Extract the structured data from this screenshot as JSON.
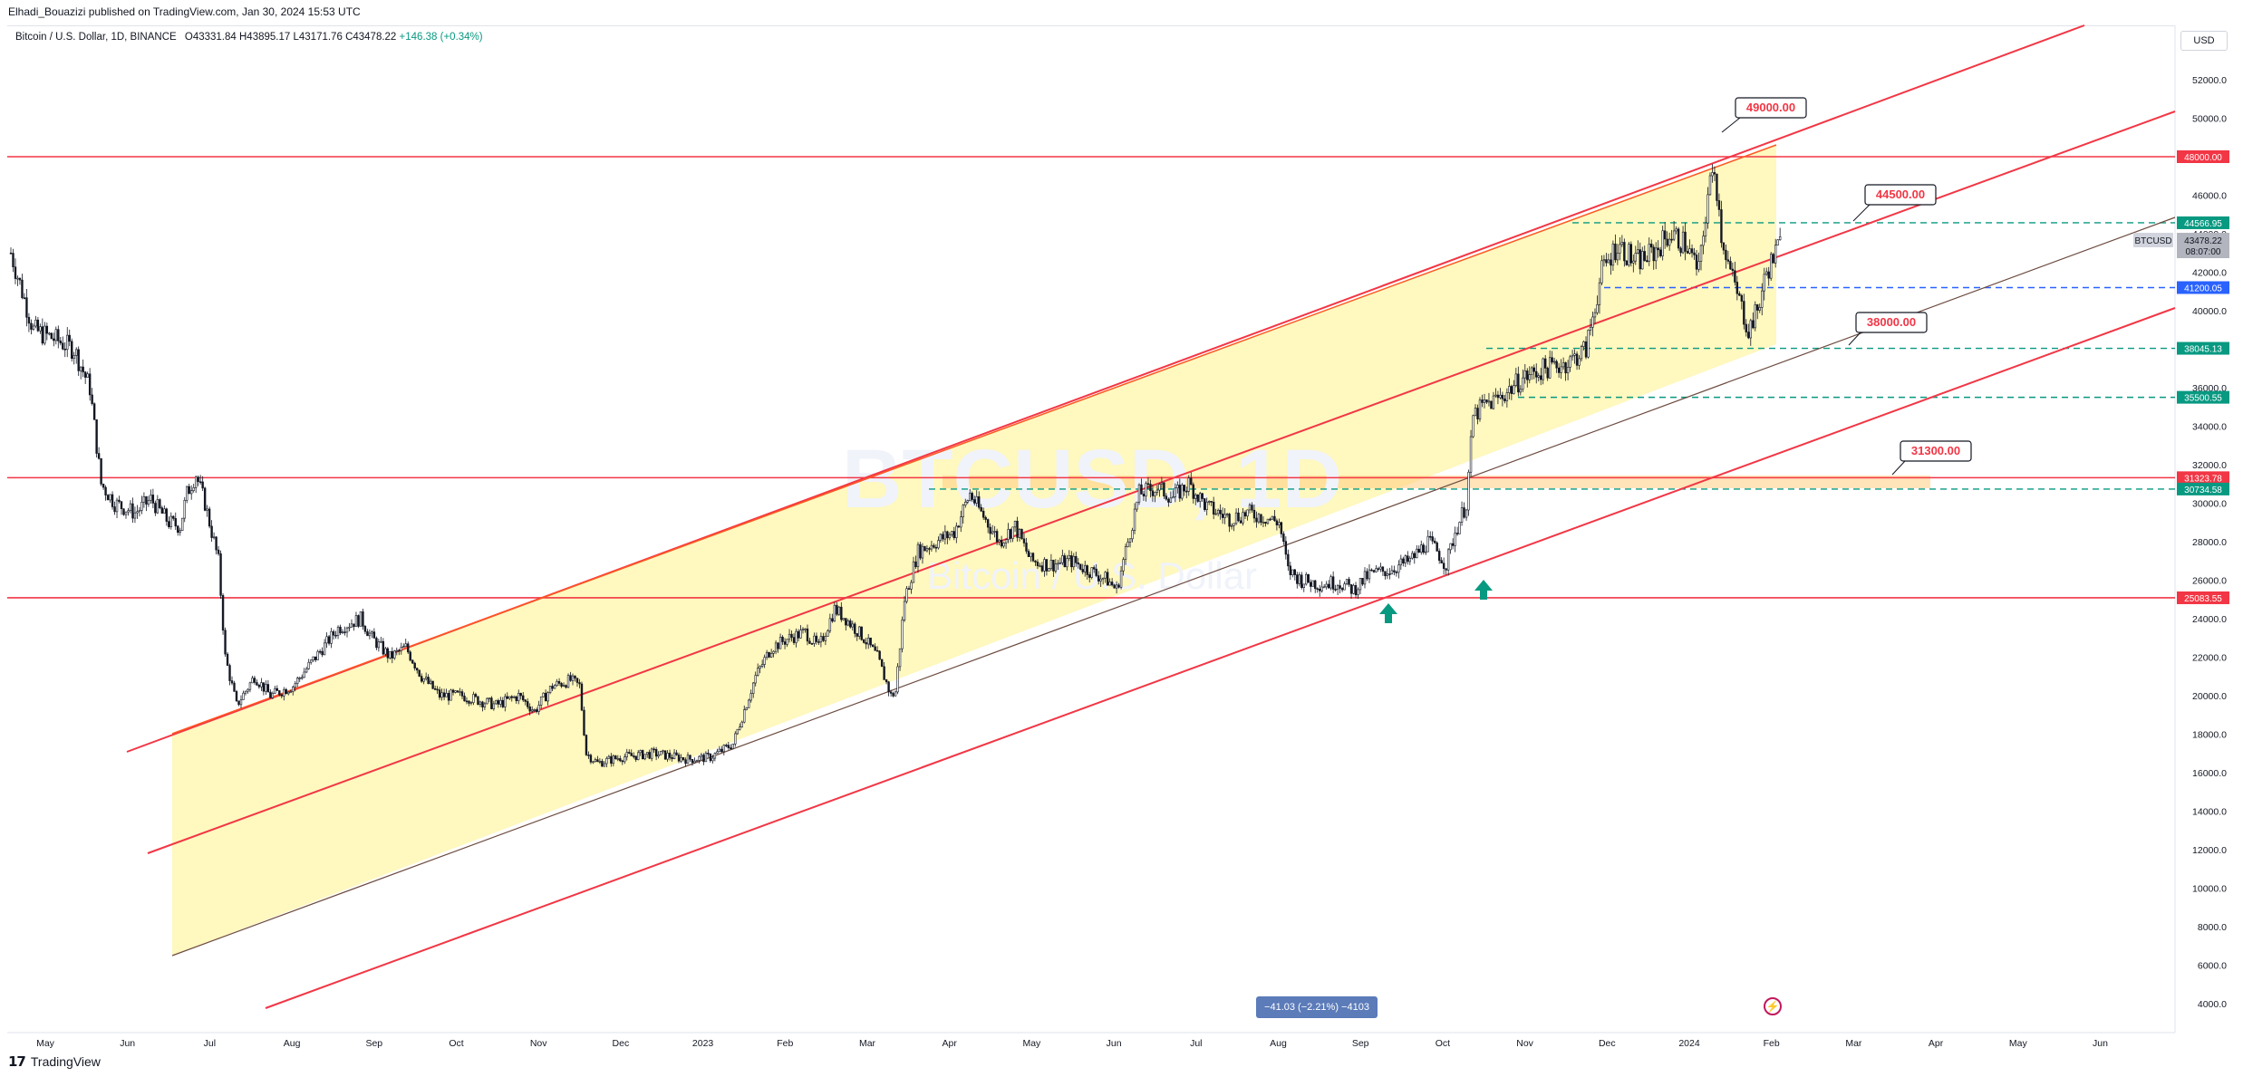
{
  "header": {
    "publisher": "Elhadi_Bouazizi published on TradingView.com, Jan 30, 2024 15:53 UTC"
  },
  "legend": {
    "title": "Bitcoin / U.S. Dollar, 1D, BINANCE",
    "open": "O43331.84",
    "high": "H43895.17",
    "low": "L43171.76",
    "close": "C43478.22",
    "change": "+146.38 (+0.34%)"
  },
  "currency_label": "USD",
  "watermark": {
    "symbol": "BTCUSD, 1D",
    "name": "Bitcoin / U.S. Dollar"
  },
  "measure_label": "−41.03 (−2.21%) −4103",
  "footer": {
    "logo": "𝟭𝟳",
    "brand": "TradingView"
  },
  "colors": {
    "candle_up": "#131722",
    "candle_down": "#131722",
    "channel_fill": "#fff59d",
    "red_line": "#f23645",
    "orange_line": "#ff5722",
    "teal": "#089981",
    "blue": "#2962ff",
    "zone_fill": "#ffcc80"
  },
  "chart_data": {
    "type": "candlestick",
    "symbol": "BTCUSD",
    "interval": "1D",
    "exchange": "BINANCE",
    "ylim": [
      3000,
      54000
    ],
    "y_ticks": [
      4000,
      6000,
      8000,
      10000,
      12000,
      14000,
      16000,
      18000,
      20000,
      22000,
      24000,
      26000,
      28000,
      30000,
      32000,
      34000,
      36000,
      38000,
      40000,
      42000,
      44000,
      46000,
      48000,
      50000,
      52000
    ],
    "x_ticks": [
      "May",
      "Jun",
      "Jul",
      "Aug",
      "Sep",
      "Oct",
      "Nov",
      "Dec",
      "2023",
      "Feb",
      "Mar",
      "Apr",
      "May",
      "Jun",
      "Jul",
      "Aug",
      "Sep",
      "Oct",
      "Nov",
      "Dec",
      "2024",
      "Feb",
      "Mar",
      "Apr",
      "May",
      "Jun"
    ],
    "price_path": [
      [
        0,
        43000
      ],
      [
        5,
        41000
      ],
      [
        10,
        39000
      ],
      [
        20,
        38500
      ],
      [
        28,
        38000
      ],
      [
        35,
        36000
      ],
      [
        40,
        31000
      ],
      [
        46,
        30000
      ],
      [
        55,
        29500
      ],
      [
        62,
        30200
      ],
      [
        70,
        29000
      ],
      [
        75,
        28800
      ],
      [
        78,
        30500
      ],
      [
        82,
        31500
      ],
      [
        86,
        30000
      ],
      [
        92,
        27000
      ],
      [
        95,
        22000
      ],
      [
        100,
        19500
      ],
      [
        108,
        21000
      ],
      [
        115,
        20000
      ],
      [
        125,
        20500
      ],
      [
        135,
        22000
      ],
      [
        145,
        23500
      ],
      [
        155,
        24000
      ],
      [
        160,
        23000
      ],
      [
        168,
        22000
      ],
      [
        175,
        22500
      ],
      [
        182,
        21000
      ],
      [
        190,
        20000
      ],
      [
        200,
        20000
      ],
      [
        215,
        19500
      ],
      [
        225,
        20000
      ],
      [
        232,
        19200
      ],
      [
        240,
        20500
      ],
      [
        248,
        20800
      ],
      [
        252,
        20500
      ],
      [
        255,
        17000
      ],
      [
        260,
        16500
      ],
      [
        270,
        16800
      ],
      [
        285,
        17000
      ],
      [
        300,
        16700
      ],
      [
        310,
        16800
      ],
      [
        320,
        17500
      ],
      [
        330,
        21000
      ],
      [
        337,
        22500
      ],
      [
        345,
        23000
      ],
      [
        352,
        23300
      ],
      [
        358,
        22500
      ],
      [
        365,
        24500
      ],
      [
        370,
        24000
      ],
      [
        378,
        23000
      ],
      [
        384,
        22000
      ],
      [
        390,
        20000
      ],
      [
        392,
        20200
      ],
      [
        396,
        25000
      ],
      [
        402,
        27500
      ],
      [
        410,
        28000
      ],
      [
        418,
        28500
      ],
      [
        425,
        30500
      ],
      [
        430,
        29500
      ],
      [
        438,
        28000
      ],
      [
        445,
        28800
      ],
      [
        452,
        27000
      ],
      [
        460,
        26800
      ],
      [
        470,
        27000
      ],
      [
        478,
        26500
      ],
      [
        486,
        26000
      ],
      [
        490,
        25500
      ],
      [
        494,
        27500
      ],
      [
        500,
        30500
      ],
      [
        508,
        30800
      ],
      [
        515,
        30300
      ],
      [
        522,
        31000
      ],
      [
        530,
        29800
      ],
      [
        540,
        29200
      ],
      [
        548,
        29500
      ],
      [
        555,
        29300
      ],
      [
        562,
        29000
      ],
      [
        566,
        26500
      ],
      [
        572,
        26000
      ],
      [
        580,
        25800
      ],
      [
        588,
        25900
      ],
      [
        595,
        25500
      ],
      [
        602,
        26300
      ],
      [
        610,
        26500
      ],
      [
        620,
        27000
      ],
      [
        628,
        28000
      ],
      [
        632,
        27500
      ],
      [
        636,
        26800
      ],
      [
        640,
        28500
      ],
      [
        645,
        30000
      ],
      [
        648,
        34500
      ],
      [
        652,
        35000
      ],
      [
        660,
        35500
      ],
      [
        670,
        36500
      ],
      [
        680,
        37000
      ],
      [
        690,
        37300
      ],
      [
        698,
        38000
      ],
      [
        705,
        42000
      ],
      [
        712,
        43500
      ],
      [
        720,
        42500
      ],
      [
        728,
        43000
      ],
      [
        735,
        44000
      ],
      [
        742,
        43500
      ],
      [
        748,
        42000
      ],
      [
        752,
        46000
      ],
      [
        755,
        47500
      ],
      [
        758,
        44000
      ],
      [
        762,
        42000
      ],
      [
        766,
        40500
      ],
      [
        770,
        39000
      ],
      [
        774,
        40000
      ],
      [
        778,
        42000
      ],
      [
        782,
        43000
      ],
      [
        784,
        43478
      ]
    ],
    "horizontal_levels": [
      {
        "price": 48000,
        "label": "48000.00",
        "style": "solid",
        "color": "#f23645"
      },
      {
        "price": 44566.95,
        "label": "44566.95",
        "style": "dashed",
        "color": "#089981"
      },
      {
        "price": 41200.05,
        "label": "41200.05",
        "style": "dashed",
        "color": "#2962ff"
      },
      {
        "price": 38045.13,
        "label": "38045.13",
        "style": "dashed",
        "color": "#089981"
      },
      {
        "price": 35500.55,
        "label": "35500.55",
        "style": "dashed",
        "color": "#089981"
      },
      {
        "price": 31323.78,
        "label": "31323.78",
        "style": "solid",
        "color": "#f23645"
      },
      {
        "price": 30734.58,
        "label": "30734.58",
        "style": "dashed",
        "color": "#089981"
      },
      {
        "price": 25083.55,
        "label": "25083.55",
        "style": "solid",
        "color": "#f23645"
      }
    ],
    "callouts": [
      "49000.00",
      "44500.00",
      "38000.00",
      "31300.00"
    ],
    "last_price": {
      "symbol": "BTCUSD",
      "price": "43478.22",
      "countdown": "08:07:00"
    }
  }
}
